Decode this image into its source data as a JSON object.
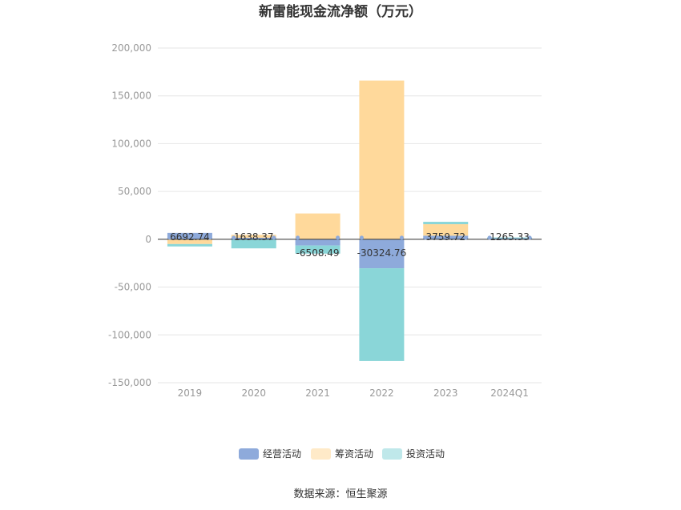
{
  "chart_data": {
    "type": "bar",
    "stacked": true,
    "title": "新雷能现金流净额（万元）",
    "categories": [
      "2019",
      "2020",
      "2021",
      "2022",
      "2023",
      "2024Q1"
    ],
    "ylim": [
      -150000,
      200000
    ],
    "yticks": [
      200000,
      150000,
      100000,
      50000,
      0,
      -50000,
      -100000,
      -150000
    ],
    "ytick_labels": [
      "200,000",
      "150,000",
      "100,000",
      "50,000",
      "0",
      "-50,000",
      "-100,000",
      "-150,000"
    ],
    "grid": true,
    "legend_position": "bottom",
    "series": [
      {
        "name": "经营活动",
        "color": "#8eaadb",
        "values": [
          6692.74,
          1638.37,
          -6508.49,
          -30324.76,
          3759.72,
          1265.33
        ]
      },
      {
        "name": "筹资活动",
        "color": "#ffd99b",
        "values": [
          -5000,
          3000,
          27000,
          166000,
          12000,
          0
        ]
      },
      {
        "name": "投资活动",
        "color": "#8ad6d8",
        "values": [
          -2500,
          -9500,
          -8500,
          -97000,
          2500,
          600
        ]
      }
    ],
    "data_labels": [
      "6692.74",
      "1638.37",
      "-6508.49",
      "-30324.76",
      "3759.72",
      "1265.33"
    ]
  },
  "source_text": "数据来源：恒生聚源"
}
